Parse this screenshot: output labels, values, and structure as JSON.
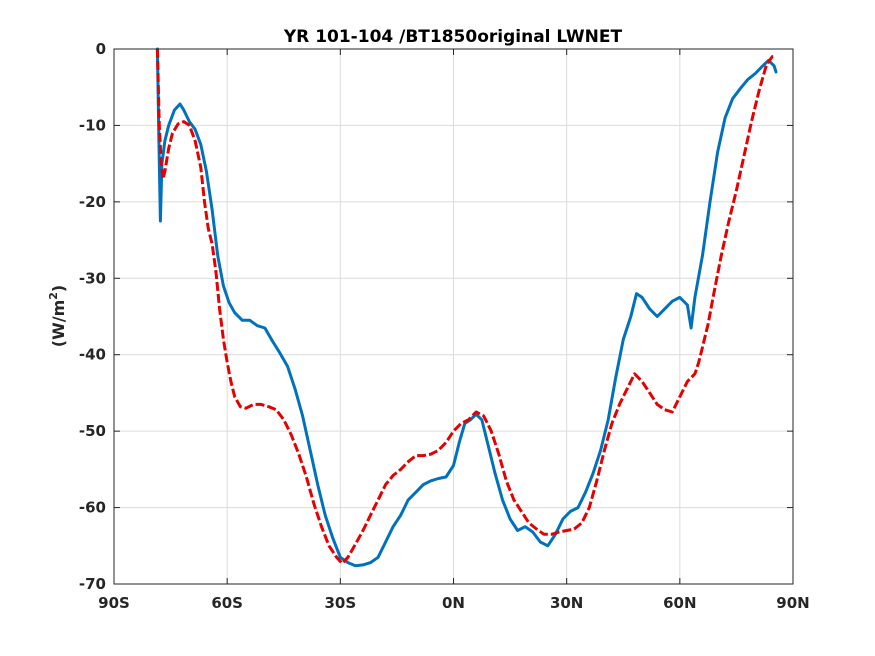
{
  "chart_data": {
    "type": "line",
    "title": "YR 101-104 /BT1850original LWNET",
    "xlabel": "",
    "ylabel_main": "(W/m",
    "ylabel_sup": "2",
    "ylabel_close": ")",
    "xlim": [
      -90,
      90
    ],
    "ylim": [
      -70,
      0
    ],
    "grid": true,
    "legend": "none",
    "x_ticks": [
      {
        "value": -90,
        "label": "90S"
      },
      {
        "value": -60,
        "label": "60S"
      },
      {
        "value": -30,
        "label": "30S"
      },
      {
        "value": 0,
        "label": "0N"
      },
      {
        "value": 30,
        "label": "30N"
      },
      {
        "value": 60,
        "label": "60N"
      },
      {
        "value": 90,
        "label": "90N"
      }
    ],
    "y_ticks": [
      {
        "value": 0,
        "label": "0"
      },
      {
        "value": -10,
        "label": "-10"
      },
      {
        "value": -20,
        "label": "-20"
      },
      {
        "value": -30,
        "label": "-30"
      },
      {
        "value": -40,
        "label": "-40"
      },
      {
        "value": -50,
        "label": "-50"
      },
      {
        "value": -60,
        "label": "-60"
      },
      {
        "value": -70,
        "label": "-70"
      }
    ],
    "series": [
      {
        "color": "#0072BD",
        "style": "solid",
        "points": [
          [
            -78.5,
            0
          ],
          [
            -78.1,
            -12
          ],
          [
            -77.7,
            -22.5
          ],
          [
            -77.3,
            -15
          ],
          [
            -76.5,
            -12
          ],
          [
            -75.5,
            -10
          ],
          [
            -74,
            -8
          ],
          [
            -72.5,
            -7.2
          ],
          [
            -71.5,
            -8
          ],
          [
            -70,
            -9.5
          ],
          [
            -68.5,
            -10.5
          ],
          [
            -67,
            -12.5
          ],
          [
            -65.5,
            -16
          ],
          [
            -64,
            -21
          ],
          [
            -62.5,
            -27
          ],
          [
            -61,
            -31
          ],
          [
            -59.5,
            -33.2
          ],
          [
            -58,
            -34.5
          ],
          [
            -56,
            -35.5
          ],
          [
            -54,
            -35.5
          ],
          [
            -52,
            -36.2
          ],
          [
            -50,
            -36.5
          ],
          [
            -48,
            -38.2
          ],
          [
            -46,
            -39.8
          ],
          [
            -44,
            -41.5
          ],
          [
            -42,
            -44.5
          ],
          [
            -40,
            -48
          ],
          [
            -38,
            -52.5
          ],
          [
            -36,
            -57
          ],
          [
            -34,
            -61
          ],
          [
            -32,
            -64
          ],
          [
            -30,
            -66.5
          ],
          [
            -28,
            -67.2
          ],
          [
            -26,
            -67.6
          ],
          [
            -24,
            -67.5
          ],
          [
            -22,
            -67.2
          ],
          [
            -20,
            -66.5
          ],
          [
            -18,
            -64.5
          ],
          [
            -16,
            -62.5
          ],
          [
            -14,
            -61
          ],
          [
            -12,
            -59
          ],
          [
            -10,
            -58
          ],
          [
            -8,
            -57
          ],
          [
            -6,
            -56.5
          ],
          [
            -4,
            -56.2
          ],
          [
            -2,
            -56
          ],
          [
            0,
            -54.5
          ],
          [
            1.5,
            -51.5
          ],
          [
            3,
            -49
          ],
          [
            4.5,
            -48.5
          ],
          [
            6,
            -47.8
          ],
          [
            7.5,
            -48.5
          ],
          [
            9,
            -51.5
          ],
          [
            11,
            -55.5
          ],
          [
            13,
            -59
          ],
          [
            15,
            -61.5
          ],
          [
            17,
            -63
          ],
          [
            19,
            -62.5
          ],
          [
            21,
            -63.2
          ],
          [
            23,
            -64.5
          ],
          [
            25,
            -65
          ],
          [
            27,
            -63.5
          ],
          [
            29,
            -61.5
          ],
          [
            31,
            -60.5
          ],
          [
            33,
            -60
          ],
          [
            35,
            -58
          ],
          [
            37,
            -55.5
          ],
          [
            39,
            -52.5
          ],
          [
            41,
            -48.5
          ],
          [
            43,
            -43
          ],
          [
            45,
            -38
          ],
          [
            47,
            -35
          ],
          [
            48.5,
            -32
          ],
          [
            50,
            -32.5
          ],
          [
            52,
            -34
          ],
          [
            54,
            -35
          ],
          [
            56,
            -34
          ],
          [
            58,
            -33
          ],
          [
            60,
            -32.5
          ],
          [
            62,
            -33.5
          ],
          [
            63,
            -36.5
          ],
          [
            64,
            -32.5
          ],
          [
            66,
            -27
          ],
          [
            68,
            -20
          ],
          [
            70,
            -13.5
          ],
          [
            72,
            -9
          ],
          [
            74,
            -6.5
          ],
          [
            76,
            -5.2
          ],
          [
            78,
            -4
          ],
          [
            80,
            -3.2
          ],
          [
            82,
            -2.2
          ],
          [
            83.5,
            -1.5
          ],
          [
            85,
            -2.2
          ],
          [
            85.5,
            -3
          ]
        ]
      },
      {
        "color": "#E60000",
        "style": "dashed",
        "points": [
          [
            -78.5,
            0
          ],
          [
            -78,
            -10
          ],
          [
            -77.5,
            -15
          ],
          [
            -77,
            -17
          ],
          [
            -76.5,
            -16
          ],
          [
            -75.5,
            -13
          ],
          [
            -74.5,
            -11
          ],
          [
            -73,
            -9.8
          ],
          [
            -71.5,
            -9.5
          ],
          [
            -70,
            -10
          ],
          [
            -68.5,
            -12
          ],
          [
            -67,
            -15.5
          ],
          [
            -66,
            -20
          ],
          [
            -65,
            -23.5
          ],
          [
            -64,
            -25.5
          ],
          [
            -63,
            -29
          ],
          [
            -62,
            -34
          ],
          [
            -61,
            -38
          ],
          [
            -60,
            -41
          ],
          [
            -59,
            -43.5
          ],
          [
            -58,
            -45.5
          ],
          [
            -56.5,
            -46.8
          ],
          [
            -55,
            -47
          ],
          [
            -53,
            -46.5
          ],
          [
            -51,
            -46.5
          ],
          [
            -49,
            -46.8
          ],
          [
            -47,
            -47.2
          ],
          [
            -45,
            -48.5
          ],
          [
            -43,
            -50.5
          ],
          [
            -41,
            -53
          ],
          [
            -39,
            -56
          ],
          [
            -37,
            -59.5
          ],
          [
            -35,
            -62.5
          ],
          [
            -33,
            -65
          ],
          [
            -31,
            -66.5
          ],
          [
            -29.5,
            -67.3
          ],
          [
            -28,
            -66.5
          ],
          [
            -26,
            -64.8
          ],
          [
            -24,
            -63
          ],
          [
            -22,
            -61
          ],
          [
            -20,
            -59
          ],
          [
            -18,
            -57
          ],
          [
            -16,
            -55.8
          ],
          [
            -14,
            -55
          ],
          [
            -12,
            -54
          ],
          [
            -10,
            -53.2
          ],
          [
            -8,
            -53.2
          ],
          [
            -6,
            -53
          ],
          [
            -4,
            -52.5
          ],
          [
            -2,
            -51.5
          ],
          [
            0,
            -50
          ],
          [
            2,
            -49
          ],
          [
            4,
            -48.5
          ],
          [
            6,
            -47.5
          ],
          [
            8,
            -48
          ],
          [
            10,
            -50
          ],
          [
            12,
            -53
          ],
          [
            14,
            -56.5
          ],
          [
            16,
            -59
          ],
          [
            18,
            -60.5
          ],
          [
            20,
            -62
          ],
          [
            22,
            -62.8
          ],
          [
            24,
            -63.5
          ],
          [
            26,
            -63.5
          ],
          [
            28,
            -63.2
          ],
          [
            30,
            -63
          ],
          [
            32,
            -62.8
          ],
          [
            34,
            -62
          ],
          [
            36,
            -60
          ],
          [
            38,
            -56.5
          ],
          [
            40,
            -52.5
          ],
          [
            42,
            -49
          ],
          [
            44,
            -46.5
          ],
          [
            46,
            -44.5
          ],
          [
            48,
            -42.5
          ],
          [
            50,
            -43.5
          ],
          [
            52,
            -45
          ],
          [
            54,
            -46.5
          ],
          [
            56,
            -47.2
          ],
          [
            58,
            -47.5
          ],
          [
            60,
            -45.5
          ],
          [
            62,
            -43.5
          ],
          [
            64,
            -42.5
          ],
          [
            65,
            -41
          ],
          [
            66,
            -39
          ],
          [
            67.5,
            -36
          ],
          [
            69,
            -32
          ],
          [
            71,
            -27
          ],
          [
            73,
            -22.5
          ],
          [
            75,
            -18.5
          ],
          [
            77,
            -14
          ],
          [
            79,
            -9.5
          ],
          [
            81,
            -5.5
          ],
          [
            83,
            -2
          ],
          [
            84.5,
            -1
          ],
          [
            85.5,
            -1
          ]
        ]
      }
    ]
  }
}
